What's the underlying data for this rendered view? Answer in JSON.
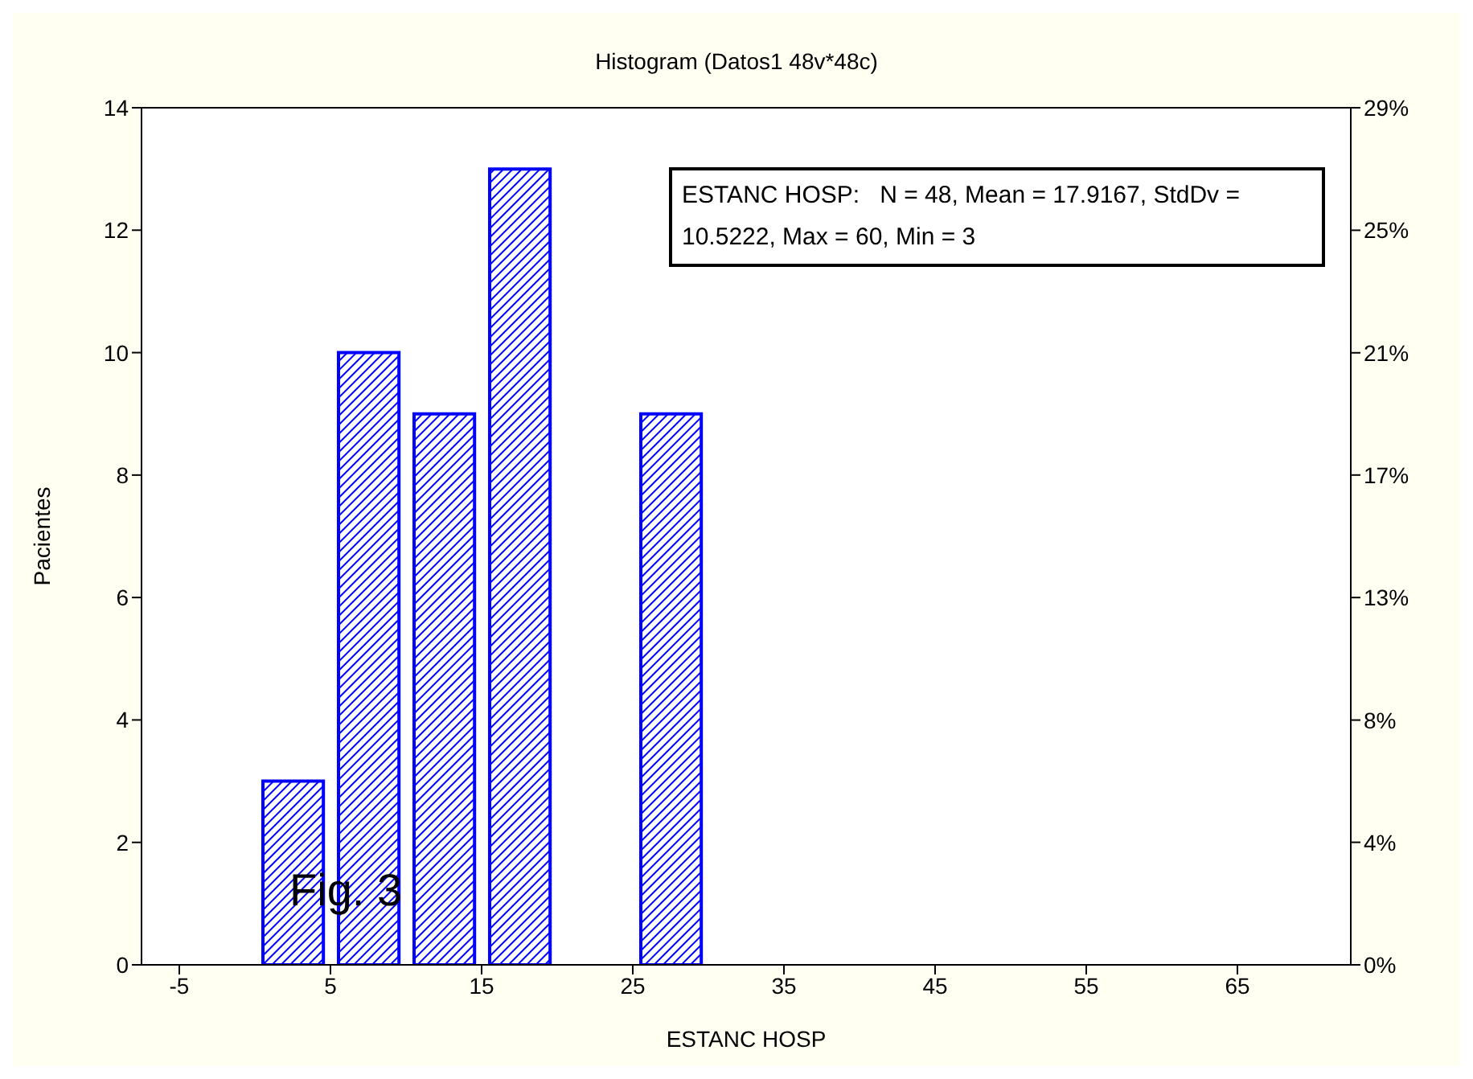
{
  "chart_data": {
    "type": "histogram",
    "title": "Histogram (Datos1 48v*48c)",
    "xlabel": "ESTANC HOSP",
    "ylabel": "Pacientes",
    "bins": [
      0,
      5,
      10,
      15,
      20,
      25,
      30
    ],
    "values": [
      3,
      10,
      9,
      13,
      0,
      9
    ],
    "color": "#0000ff",
    "xlim": [
      -7.5,
      72.5
    ],
    "xticks": [
      -5,
      5,
      15,
      25,
      35,
      45,
      55,
      65
    ],
    "ylim": [
      0,
      14
    ],
    "yticks": [
      0,
      2,
      4,
      6,
      8,
      10,
      12,
      14
    ],
    "y2lim": [
      0,
      29.17
    ],
    "y2ticks": [
      {
        "value": 0,
        "label": "0%"
      },
      {
        "value": 4.17,
        "label": "4%"
      },
      {
        "value": 8.33,
        "label": "8%"
      },
      {
        "value": 12.5,
        "label": "13%"
      },
      {
        "value": 16.67,
        "label": "17%"
      },
      {
        "value": 20.83,
        "label": "21%"
      },
      {
        "value": 25,
        "label": "25%"
      },
      {
        "value": 29.17,
        "label": "29%"
      }
    ],
    "annotations": [
      "ESTANC HOSP:   N = 48, Mean = 17.9167, StdDv = 10.5222, Max = 60, Min = 3",
      "Fig. 3"
    ]
  }
}
